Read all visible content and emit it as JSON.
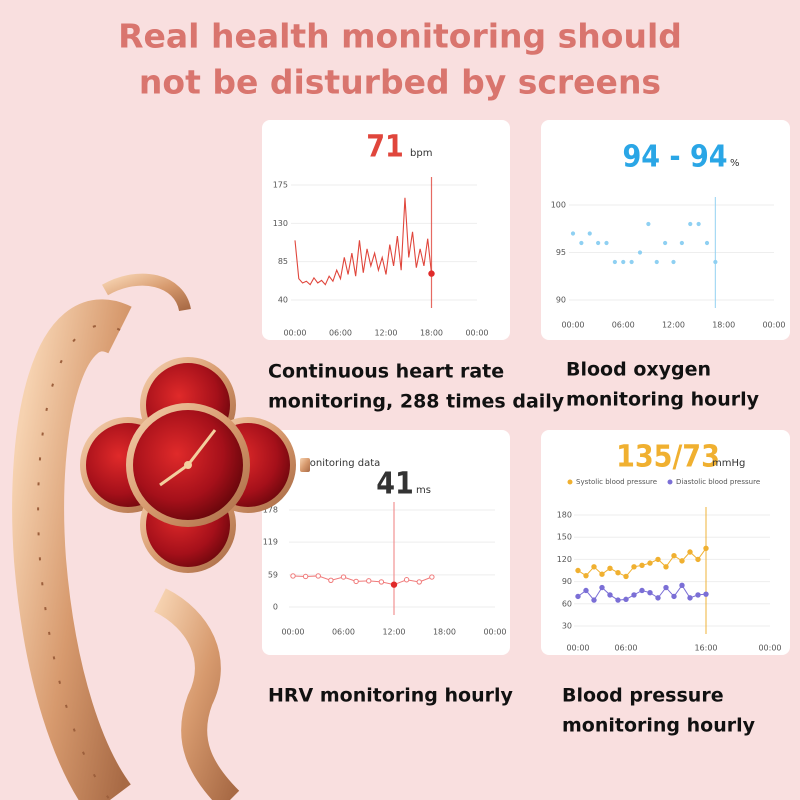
{
  "title": [
    "Real health monitoring should",
    "not be disturbed by screens"
  ],
  "captions": [
    [
      "Continuous heart rate",
      "monitoring, 288 times daily"
    ],
    [
      "Blood oxygen",
      "monitoring hourly"
    ],
    [
      "HRV monitoring hourly"
    ],
    [
      "Blood pressure",
      "monitoring hourly"
    ]
  ],
  "chart_data": [
    {
      "type": "line",
      "headline": "71",
      "unit": "bpm",
      "headline_color": "#e0463c",
      "color": "#e0463c",
      "markers": false,
      "grid": true,
      "xlim": [
        0,
        24
      ],
      "xticks": [
        {
          "value": 0,
          "label": "00:00"
        },
        {
          "value": 6,
          "label": "06:00"
        },
        {
          "value": 12,
          "label": "12:00"
        },
        {
          "value": 18,
          "label": "18:00"
        },
        {
          "value": 24,
          "label": "00:00"
        }
      ],
      "ylim": [
        40,
        175
      ],
      "yticks": [
        40,
        85,
        130,
        175
      ],
      "x": [
        0,
        0.5,
        1,
        1.5,
        2,
        2.5,
        3,
        3.5,
        4,
        4.5,
        5,
        5.5,
        6,
        6.5,
        7,
        7.5,
        8,
        8.5,
        9,
        9.5,
        10,
        10.5,
        11,
        11.5,
        12,
        12.5,
        13,
        13.5,
        14,
        14.5,
        15,
        15.5,
        16,
        16.5,
        17,
        17.5,
        18
      ],
      "values": [
        110,
        65,
        60,
        62,
        58,
        66,
        60,
        63,
        58,
        68,
        62,
        75,
        65,
        90,
        70,
        95,
        68,
        110,
        72,
        100,
        80,
        95,
        75,
        90,
        70,
        105,
        80,
        115,
        75,
        160,
        90,
        120,
        78,
        100,
        80,
        112,
        71
      ]
    },
    {
      "type": "scatter",
      "headline": "94 - 94",
      "unit": "%",
      "headline_color": "#2aa6e6",
      "color": "#8fd0f2",
      "grid": true,
      "xlim": [
        0,
        24
      ],
      "xticks": [
        {
          "value": 0,
          "label": "00:00"
        },
        {
          "value": 6,
          "label": "06:00"
        },
        {
          "value": 12,
          "label": "12:00"
        },
        {
          "value": 18,
          "label": "18:00"
        },
        {
          "value": 24,
          "label": "00:00"
        }
      ],
      "ylim": [
        90,
        100
      ],
      "yticks": [
        90,
        95,
        100
      ],
      "x": [
        0,
        1,
        2,
        3,
        4,
        5,
        6,
        7,
        8,
        9,
        10,
        11,
        12,
        13,
        14,
        15,
        16,
        17
      ],
      "values": [
        97,
        96,
        97,
        96,
        96,
        94,
        94,
        94,
        95,
        98,
        94,
        96,
        94,
        96,
        98,
        98,
        96,
        94
      ]
    },
    {
      "type": "line",
      "title": "monitoring data",
      "headline": "41",
      "unit": "ms",
      "headline_color": "#333333",
      "color": "#f07a7a",
      "markers": true,
      "grid": true,
      "xlim": [
        0,
        24
      ],
      "xticks": [
        {
          "value": 0,
          "label": "00:00"
        },
        {
          "value": 6,
          "label": "06:00"
        },
        {
          "value": 12,
          "label": "12:00"
        },
        {
          "value": 18,
          "label": "18:00"
        },
        {
          "value": 24,
          "label": "00:00"
        }
      ],
      "ylim": [
        0,
        178
      ],
      "yticks": [
        0,
        59,
        119,
        178
      ],
      "x": [
        0,
        1.5,
        3,
        4.5,
        6,
        7.5,
        9,
        10.5,
        12,
        13.5,
        15,
        16.5
      ],
      "values": [
        57,
        56,
        57,
        49,
        55,
        47,
        48,
        46,
        41,
        50,
        46,
        55
      ]
    },
    {
      "type": "line",
      "headline": "135/73",
      "unit": "mmHg",
      "headline_color": "#f0b030",
      "markers": true,
      "grid": true,
      "xlim": [
        0,
        24
      ],
      "xticks": [
        {
          "value": 0,
          "label": "00:00"
        },
        {
          "value": 6,
          "label": "06:00"
        },
        {
          "value": 16,
          "label": "16:00"
        },
        {
          "value": 24,
          "label": "00:00"
        }
      ],
      "ylim": [
        30,
        180
      ],
      "yticks": [
        30,
        60,
        90,
        120,
        150,
        180
      ],
      "x": [
        0,
        1,
        2,
        3,
        4,
        5,
        6,
        7,
        8,
        9,
        10,
        11,
        12,
        13,
        14,
        15,
        16
      ],
      "series": [
        {
          "name": "Systolic blood pressure",
          "color": "#f0b030",
          "values": [
            105,
            98,
            110,
            100,
            108,
            102,
            97,
            110,
            112,
            115,
            120,
            110,
            125,
            118,
            130,
            120,
            135
          ]
        },
        {
          "name": "Diastolic blood pressure",
          "color": "#7b6fd6",
          "values": [
            70,
            78,
            65,
            82,
            72,
            65,
            66,
            72,
            78,
            75,
            68,
            82,
            70,
            85,
            68,
            72,
            73
          ]
        }
      ]
    }
  ]
}
